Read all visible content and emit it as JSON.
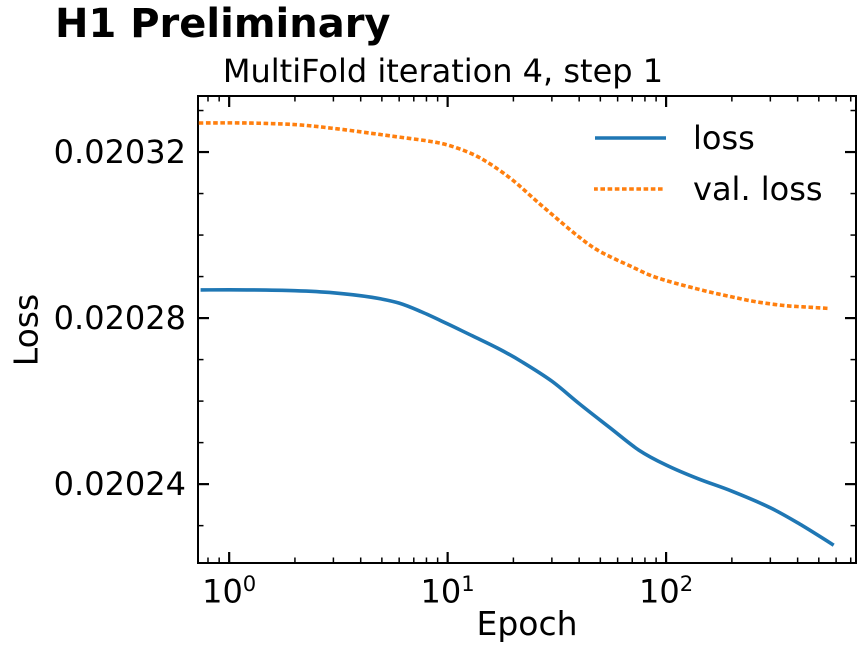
{
  "header": "H1 Preliminary",
  "chart_data": {
    "type": "line",
    "title": "MultiFold iteration 4, step 1",
    "xlabel": "Epoch",
    "ylabel": "Loss",
    "xscale": "log",
    "yscale": "linear",
    "grid": false,
    "xlim": [
      0.72,
      740
    ],
    "ylim": [
      0.020221,
      0.0203335
    ],
    "x_major_ticks": [
      {
        "value": 1,
        "label": "10^0"
      },
      {
        "value": 10,
        "label": "10^1"
      },
      {
        "value": 100,
        "label": "10^2"
      }
    ],
    "x_minor_ticks": [
      0.8,
      0.9,
      2,
      3,
      4,
      5,
      6,
      7,
      8,
      9,
      20,
      30,
      40,
      50,
      60,
      70,
      80,
      90,
      200,
      300,
      400,
      500,
      600,
      700
    ],
    "y_major_ticks": [
      {
        "value": 0.02024,
        "label": "0.02024"
      },
      {
        "value": 0.02028,
        "label": "0.02028"
      },
      {
        "value": 0.02032,
        "label": "0.02032"
      }
    ],
    "y_minor_ticks": [
      0.02023,
      0.02025,
      0.02026,
      0.02027,
      0.02029,
      0.0203,
      0.02031,
      0.02033
    ],
    "legend": {
      "position": "upper right",
      "frame": false,
      "entries": [
        {
          "label": "loss",
          "color": "#1f77b4",
          "style": "solid"
        },
        {
          "label": "val. loss",
          "color": "#ff7f0e",
          "style": "dotted"
        }
      ]
    },
    "colors": {
      "loss": "#1f77b4",
      "val_loss": "#ff7f0e",
      "axes": "#000000",
      "text": "#000000"
    },
    "series": [
      {
        "name": "loss",
        "color": "#1f77b4",
        "style": "solid",
        "points": [
          [
            0.74,
            0.0202868
          ],
          [
            1.2,
            0.0202868
          ],
          [
            2,
            0.0202866
          ],
          [
            3,
            0.0202861
          ],
          [
            4.5,
            0.020285
          ],
          [
            6,
            0.0202836
          ],
          [
            7.6,
            0.0202815
          ],
          [
            10,
            0.0202786
          ],
          [
            13,
            0.0202757
          ],
          [
            17,
            0.0202727
          ],
          [
            22,
            0.0202694
          ],
          [
            30,
            0.0202648
          ],
          [
            40,
            0.0202594
          ],
          [
            55,
            0.0202537
          ],
          [
            75,
            0.0202482
          ],
          [
            100,
            0.0202446
          ],
          [
            140,
            0.0202413
          ],
          [
            200,
            0.0202383
          ],
          [
            300,
            0.0202343
          ],
          [
            420,
            0.02023
          ],
          [
            585,
            0.0202253
          ]
        ]
      },
      {
        "name": "val. loss",
        "color": "#ff7f0e",
        "style": "dotted",
        "points": [
          [
            0.74,
            0.020327
          ],
          [
            1.2,
            0.020327
          ],
          [
            2,
            0.0203266
          ],
          [
            3,
            0.0203257
          ],
          [
            4.5,
            0.0203245
          ],
          [
            6,
            0.0203236
          ],
          [
            8,
            0.0203227
          ],
          [
            10,
            0.0203217
          ],
          [
            13,
            0.0203195
          ],
          [
            16,
            0.0203168
          ],
          [
            20,
            0.0203131
          ],
          [
            25,
            0.0203086
          ],
          [
            30,
            0.020305
          ],
          [
            40,
            0.0202995
          ],
          [
            50,
            0.020296
          ],
          [
            70,
            0.0202923
          ],
          [
            90,
            0.0202898
          ],
          [
            137,
            0.0202871
          ],
          [
            200,
            0.0202851
          ],
          [
            260,
            0.0202839
          ],
          [
            350,
            0.020283
          ],
          [
            460,
            0.0202826
          ],
          [
            560,
            0.0202823
          ]
        ]
      }
    ]
  }
}
